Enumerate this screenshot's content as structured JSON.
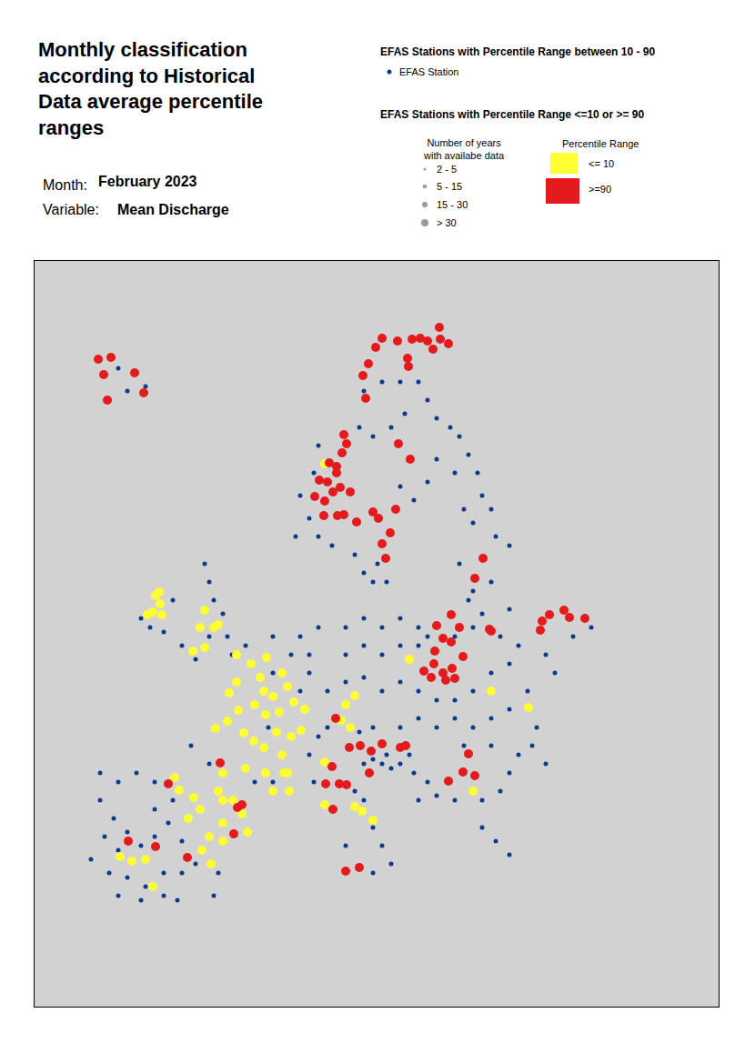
{
  "chart_data": {
    "type": "scatter",
    "title": "Monthly classification\naccording to Historical\nData average percentile\nranges",
    "annotations": {
      "month_label": "Month:",
      "month": "February 2023",
      "variable_label": "Variable:",
      "variable": "Mean Discharge",
      "heading_mid": "EFAS Stations with Percentile Range between 10 - 90",
      "heading_extreme": "EFAS Stations with Percentile Range <=10 or >= 90",
      "years_heading": "Number of years\nwith availabe data",
      "year_classes": [
        "2 - 5",
        "5 - 15",
        "15 - 30",
        "> 30"
      ],
      "percentile_heading": "Percentile Range"
    },
    "xlim": [
      38,
      790
    ],
    "ylim": [
      1107,
      287
    ],
    "tick_labels": false,
    "grid": false,
    "series": [
      {
        "name": "EFAS Station",
        "color": "#0d3b8c",
        "marker": "small",
        "x": [
          120,
          140,
          160,
          130,
          400,
          420,
          440,
          460,
          470,
          480,
          495,
          505,
          515,
          525,
          530,
          445,
          430,
          410,
          395,
          350,
          345,
          330,
          340,
          325,
          350,
          365,
          390,
          400,
          410,
          440,
          455,
          470,
          480,
          500,
          510,
          520,
          540,
          545,
          560,
          505,
          520,
          540,
          425,
          415,
          165,
          180,
          155,
          190,
          225,
          230,
          235,
          245,
          250,
          230,
          200,
          255,
          215,
          270,
          300,
          330,
          350,
          340,
          320,
          295,
          340,
          300,
          280,
          210,
          230,
          345,
          110,
          130,
          150,
          170,
          190,
          110,
          125,
          140,
          115,
          130,
          155,
          170,
          185,
          200,
          120,
          140,
          160,
          180,
          200,
          215,
          130,
          155,
          180,
          100,
          170,
          240,
          235,
          195,
          380,
          400,
          420,
          440,
          460,
          380,
          400,
          420,
          440,
          460,
          380,
          400,
          420,
          440,
          460,
          480,
          500,
          520,
          540,
          560,
          570,
          600,
          630,
          650,
          610,
          580,
          560,
          540,
          520,
          500,
          480,
          460,
          440,
          425,
          430,
          440,
          450,
          420,
          410,
          400,
          395,
          410,
          360,
          350,
          455,
          470,
          480,
          500,
          460,
          530,
          550,
          560,
          570,
          585,
          590,
          600,
          540,
          510,
          390,
          400,
          410,
          420,
          430,
          410,
          380,
          530,
          545,
          560,
          470,
          500,
          520,
          550,
          515,
          530,
          560,
          360,
          340,
          300,
          330
        ],
        "y": [
          440,
          430,
          425,
          405,
          430,
          420,
          420,
          420,
          440,
          460,
          470,
          480,
          500,
          520,
          545,
          455,
          470,
          480,
          470,
          490,
          520,
          545,
          570,
          590,
          590,
          600,
          610,
          630,
          640,
          535,
          550,
          530,
          505,
          520,
          560,
          575,
          560,
          590,
          600,
          620,
          650,
          640,
          640,
          620,
          690,
          695,
          680,
          660,
          620,
          640,
          660,
          675,
          700,
          700,
          710,
          720,
          725,
          710,
          700,
          700,
          690,
          720,
          720,
          800,
          830,
          860,
          860,
          820,
          840,
          860,
          850,
          860,
          850,
          860,
          880,
          880,
          900,
          915,
          920,
          935,
          930,
          920,
          905,
          925,
          960,
          965,
          975,
          960,
          960,
          950,
          985,
          990,
          985,
          945,
          890,
          960,
          985,
          990,
          690,
          680,
          690,
          680,
          690,
          720,
          710,
          720,
          710,
          710,
          750,
          745,
          760,
          750,
          760,
          770,
          770,
          760,
          740,
          730,
          710,
          720,
          700,
          690,
          740,
          760,
          780,
          790,
          800,
          790,
          800,
          790,
          800,
          830,
          845,
          840,
          830,
          840,
          835,
          840,
          805,
          800,
          800,
          810,
          850,
          860,
          875,
          880,
          880,
          880,
          870,
          850,
          830,
          820,
          800,
          840,
          820,
          820,
          870,
          880,
          910,
          930,
          950,
          960,
          930,
          910,
          925,
          940,
          700,
          700,
          690,
          700,
          660,
          675,
          670,
          760,
          740,
          740,
          760
        ]
      },
      {
        "name": "<= 10",
        "color": "#ffff33",
        "marker": "large",
        "x": [
          175,
          176,
          168,
          162,
          178,
          171,
          225,
          220,
          235,
          240,
          225,
          212,
          293,
          310,
          316,
          300,
          290,
          260,
          252,
          262,
          250,
          237,
          268,
          279,
          290,
          304,
          320,
          331,
          335,
          323,
          307,
          292,
          280,
          310,
          312,
          292,
          270,
          245,
          240,
          256,
          245,
          245,
          230,
          222,
          232,
          220,
          213,
          207,
          245,
          260,
          276,
          286,
          380,
          390,
          375,
          385,
          316,
          197,
          192,
          145,
          132,
          160,
          168,
          357,
          357,
          390,
          398,
          410,
          581,
          540,
          357,
          450,
          520,
          318,
          300,
          266,
          272
        ],
        "y": [
          651,
          664,
          673,
          676,
          676,
          655,
          671,
          690,
          690,
          687,
          712,
          716,
          723,
          740,
          755,
          766,
          760,
          750,
          762,
          781,
          793,
          801,
          806,
          815,
          822,
          805,
          810,
          803,
          780,
          772,
          783,
          786,
          775,
          830,
          850,
          850,
          845,
          850,
          870,
          880,
          905,
          925,
          920,
          935,
          950,
          890,
          877,
          900,
          880,
          720,
          730,
          745,
          775,
          765,
          792,
          800,
          850,
          869,
          855,
          947,
          942,
          945,
          975,
          838,
          885,
          887,
          892,
          902,
          778,
          760,
          510,
          725,
          870,
          870,
          870,
          895,
          915
        ]
      },
      {
        "name": ">=90",
        "color": "#e41a1c",
        "marker": "large",
        "x": [
          108,
          122,
          114,
          148,
          158,
          118,
          420,
          437,
          453,
          462,
          470,
          484,
          493,
          483,
          476,
          413,
          405,
          399,
          448,
          449,
          402,
          378,
          376,
          381,
          370,
          360,
          351,
          366,
          374,
          357,
          385,
          378,
          371,
          346,
          356,
          392,
          435,
          429,
          410,
          416,
          424,
          420,
          362,
          370,
          451,
          438,
          531,
          522,
          480,
          496,
          505,
          487,
          496,
          478,
          487,
          500,
          490,
          497,
          474,
          466,
          477,
          509,
          538,
          540,
          596,
          604,
          620,
          626,
          643,
          594,
          369,
          384,
          396,
          408,
          420,
          365,
          358,
          373,
          381,
          406,
          366,
          440,
          446,
          493,
          509,
          522,
          515,
          185,
          261,
          257,
          266,
          141,
          171,
          206,
          242,
          380,
          395
        ],
        "y": [
          395,
          393,
          412,
          410,
          432,
          440,
          372,
          375,
          373,
          372,
          375,
          373,
          378,
          360,
          384,
          382,
          400,
          413,
          394,
          403,
          438,
          478,
          498,
          488,
          513,
          530,
          528,
          541,
          536,
          551,
          541,
          566,
          567,
          546,
          567,
          574,
          560,
          586,
          563,
          570,
          614,
          598,
          509,
          520,
          505,
          488,
          614,
          636,
          688,
          676,
          690,
          702,
          706,
          716,
          740,
          746,
          748,
          735,
          745,
          738,
          730,
          722,
          692,
          694,
          683,
          676,
          671,
          679,
          680,
          693,
          790,
          822,
          820,
          826,
          818,
          843,
          862,
          862,
          863,
          850,
          890,
          822,
          820,
          859,
          849,
          853,
          829,
          862,
          888,
          917,
          885,
          925,
          931,
          943,
          839,
          958,
          954
        ]
      }
    ]
  }
}
